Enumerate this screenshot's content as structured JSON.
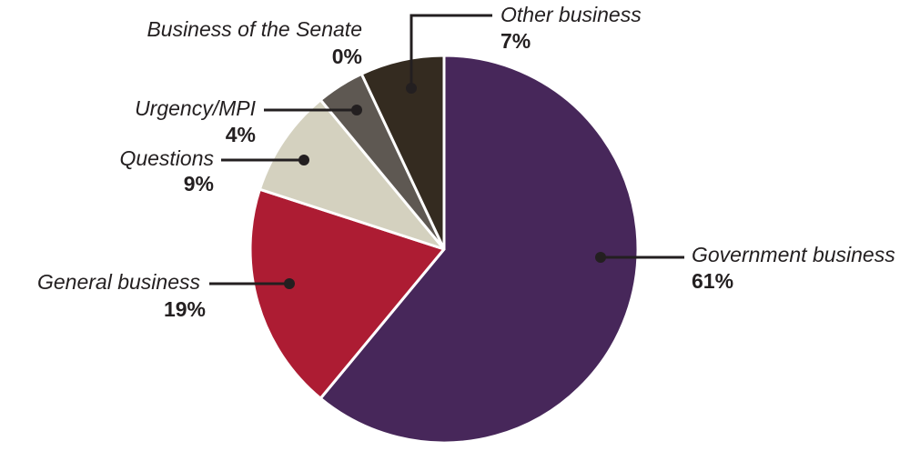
{
  "chart_data": {
    "type": "pie",
    "title": "",
    "slices": [
      {
        "label": "Government business",
        "value": 61,
        "pct_label": "61%",
        "color": "#47275a"
      },
      {
        "label": "General business",
        "value": 19,
        "pct_label": "19%",
        "color": "#ad1c33"
      },
      {
        "label": "Questions",
        "value": 9,
        "pct_label": "9%",
        "color": "#d4d1bf"
      },
      {
        "label": "Urgency/MPI",
        "value": 4,
        "pct_label": "4%",
        "color": "#5e5852"
      },
      {
        "label": "Business of the Senate",
        "value": 0,
        "pct_label": "0%",
        "color": "#9c8f7e"
      },
      {
        "label": "Other business",
        "value": 7,
        "pct_label": "7%",
        "color": "#342b20"
      }
    ],
    "slice_border_color": "#ffffff",
    "label_color": "#231f20"
  }
}
